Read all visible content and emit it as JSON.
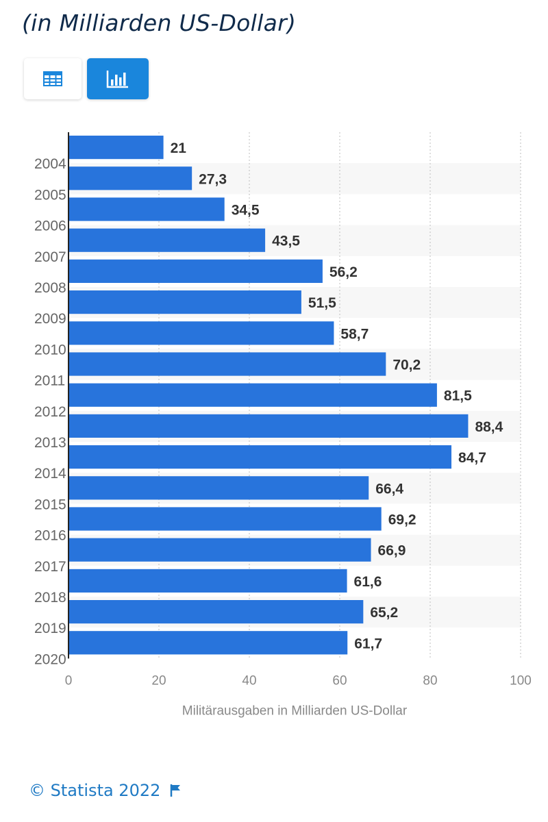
{
  "header": {
    "subtitle": "(in Milliarden US-Dollar)"
  },
  "view_toggle": {
    "table_icon": "table-icon",
    "chart_icon": "bar-chart-icon",
    "active": "chart"
  },
  "colors": {
    "bar": "#2874dc",
    "accent": "#1a86dc",
    "label": "#333333",
    "axis_text": "#666666",
    "stripe": "#f7f7f7",
    "grid": "#c8c8c8"
  },
  "chart_data": {
    "type": "bar",
    "orientation": "horizontal",
    "categories": [
      "",
      "2004",
      "2005",
      "2006",
      "2007",
      "2008",
      "2009",
      "2010",
      "2011",
      "2012",
      "2013",
      "2014",
      "2015",
      "2016",
      "2017",
      "2018",
      "2019"
    ],
    "trailing_category": "2020",
    "values": [
      21,
      27.3,
      34.5,
      43.5,
      56.2,
      51.5,
      58.7,
      70.2,
      81.5,
      88.4,
      84.7,
      66.4,
      69.2,
      66.9,
      61.6,
      65.2,
      61.7
    ],
    "value_labels": [
      "21",
      "27,3",
      "34,5",
      "43,5",
      "56,2",
      "51,5",
      "58,7",
      "70,2",
      "81,5",
      "88,4",
      "84,7",
      "66,4",
      "69,2",
      "66,9",
      "61,6",
      "65,2",
      "61,7"
    ],
    "xlabel": "Militärausgaben in Milliarden US-Dollar",
    "ylabel": "",
    "xlim": [
      0,
      100
    ],
    "xticks": [
      0,
      20,
      40,
      60,
      80,
      100
    ],
    "grid": true,
    "legend": "none"
  },
  "footer": {
    "copyright": "© Statista 2022",
    "flag_icon": "flag-icon"
  }
}
